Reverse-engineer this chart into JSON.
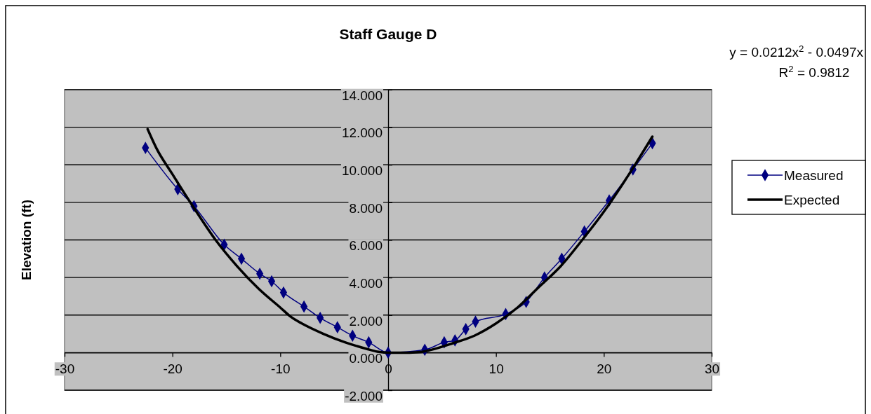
{
  "chart_data": {
    "type": "line",
    "title": "Staff Gauge D",
    "ylabel": "Elevation (ft)",
    "annotations": [
      "y = 0.0212x$^{2}$ - 0.0497x",
      "R$^{2}$ = 0.9812"
    ],
    "xlim": [
      -30,
      30
    ],
    "xticks": [
      -30,
      -20,
      -10,
      0,
      10,
      20,
      30
    ],
    "ylim": [
      -2,
      14
    ],
    "yticks": [
      {
        "value": -2,
        "label": "-2.000"
      },
      {
        "value": 0,
        "label": "0.000"
      },
      {
        "value": 2,
        "label": "2.000"
      },
      {
        "value": 4,
        "label": "4.000"
      },
      {
        "value": 6,
        "label": "6.000"
      },
      {
        "value": 8,
        "label": "8.000"
      },
      {
        "value": 10,
        "label": "10.000"
      },
      {
        "value": 12,
        "label": "12.000"
      },
      {
        "value": 14,
        "label": "14.000"
      }
    ],
    "grid": "y",
    "legend": "right",
    "series": [
      {
        "name": "Measured",
        "color": "#000080",
        "marker": "diamond",
        "x": [
          -22.5,
          -19.5,
          -18.0,
          -15.2,
          -13.6,
          -11.9,
          -10.8,
          -9.7,
          -7.8,
          -6.3,
          -4.7,
          -3.3,
          -1.8,
          0,
          3.4,
          5.2,
          6.2,
          7.2,
          8.1,
          10.9,
          12.8,
          14.5,
          16.1,
          18.2,
          20.5,
          22.7,
          24.5
        ],
        "values": [
          10.9,
          8.7,
          7.8,
          5.75,
          5.0,
          4.2,
          3.8,
          3.2,
          2.45,
          1.85,
          1.35,
          0.9,
          0.55,
          0,
          0.15,
          0.55,
          0.65,
          1.25,
          1.65,
          2.05,
          2.7,
          4.0,
          5.0,
          6.45,
          8.1,
          9.75,
          11.15
        ]
      },
      {
        "name": "Expected",
        "color": "#000000",
        "marker": "none",
        "x": [
          -22.3,
          -21.5,
          -20,
          -18,
          -16,
          -14,
          -12,
          -10,
          -9,
          -8,
          -6,
          -4,
          -2,
          -1,
          0,
          2,
          3,
          4,
          6,
          8,
          10,
          12,
          14,
          16,
          18,
          20,
          22,
          23,
          24.5
        ],
        "values": [
          11.9,
          10.9,
          9.5,
          7.7,
          6.0,
          4.6,
          3.4,
          2.4,
          1.9,
          1.55,
          1.0,
          0.55,
          0.2,
          0.05,
          0,
          0,
          0.03,
          0.15,
          0.5,
          0.9,
          1.55,
          2.4,
          3.5,
          4.6,
          6.0,
          7.5,
          9.2,
          10.1,
          11.5
        ]
      }
    ]
  }
}
